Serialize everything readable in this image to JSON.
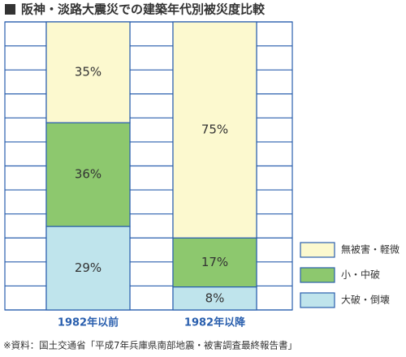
{
  "chart_data": {
    "type": "stacked_bar",
    "title": "阪神・淡路大震災での建築年代別被災度比較",
    "categories": [
      "1982年以前",
      "1982年以降"
    ],
    "series": [
      {
        "name": "大破・倒壊",
        "color": "#bfe4ec",
        "values": [
          29,
          8
        ],
        "value_labels": [
          "29%",
          "8%"
        ]
      },
      {
        "name": "小・中破",
        "color": "#8dc86e",
        "values": [
          36,
          17
        ],
        "value_labels": [
          "36%",
          "17%"
        ]
      },
      {
        "name": "無被害・軽微",
        "color": "#fcf9cf",
        "values": [
          35,
          75
        ],
        "value_labels": [
          "35%",
          "75%"
        ]
      }
    ],
    "ylim": [
      0,
      100
    ],
    "source": "※資料：国土交通省「平成7年兵庫県南部地震・被害調査最終報告書」"
  }
}
